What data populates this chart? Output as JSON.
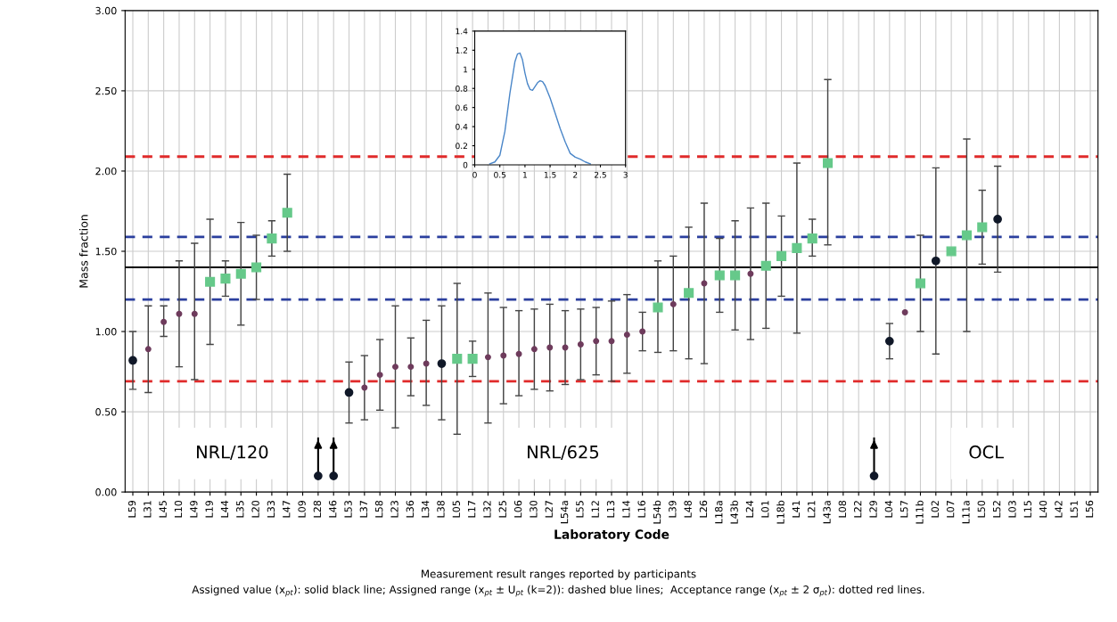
{
  "chart_data": [
    {
      "type": "scatter",
      "xlabel": "Laboratory Code",
      "ylabel": "Mass fraction",
      "categories": [
        "L59",
        "L31",
        "L45",
        "L10",
        "L49",
        "L19",
        "L44",
        "L35",
        "L20",
        "L33",
        "L47",
        "L09",
        "L28",
        "L46",
        "L53",
        "L37",
        "L58",
        "L23",
        "L36",
        "L34",
        "L38",
        "L05",
        "L17",
        "L32",
        "L25",
        "L06",
        "L30",
        "L27",
        "L54a",
        "L55",
        "L12",
        "L13",
        "L14",
        "L16",
        "L54b",
        "L39",
        "L48",
        "L26",
        "L18a",
        "L43b",
        "L24",
        "L01",
        "L18b",
        "L41",
        "L21",
        "L43a",
        "L08",
        "L22",
        "L29",
        "L04",
        "L57",
        "L11b",
        "L02",
        "L07",
        "L11a",
        "L50",
        "L52",
        "L03",
        "L15",
        "L40",
        "L42",
        "L51",
        "L56"
      ],
      "series": [
        {
          "color": "#6e3b5c",
          "marker": "circle",
          "values": [
            null,
            0.89,
            1.06,
            1.11,
            1.11,
            null,
            null,
            null,
            null,
            null,
            null,
            null,
            null,
            null,
            null,
            0.65,
            0.73,
            0.78,
            0.78,
            0.8,
            null,
            null,
            null,
            0.84,
            0.85,
            0.86,
            0.89,
            0.9,
            0.9,
            0.92,
            0.94,
            0.94,
            0.98,
            1.0,
            null,
            1.17,
            null,
            1.3,
            null,
            null,
            1.36,
            null,
            null,
            null,
            null,
            null,
            null,
            null,
            null,
            null,
            1.12,
            null,
            null,
            null,
            null,
            null,
            null,
            null,
            null,
            null,
            null,
            null,
            null
          ],
          "errors": [
            null,
            [
              0.62,
              1.16
            ],
            [
              0.97,
              1.16
            ],
            [
              0.78,
              1.44
            ],
            [
              0.7,
              1.55
            ],
            null,
            null,
            null,
            null,
            null,
            null,
            null,
            null,
            null,
            null,
            [
              0.45,
              0.85
            ],
            [
              0.51,
              0.95
            ],
            [
              0.4,
              1.16
            ],
            [
              0.6,
              0.96
            ],
            [
              0.54,
              1.07
            ],
            null,
            null,
            null,
            [
              0.43,
              1.24
            ],
            [
              0.55,
              1.15
            ],
            [
              0.6,
              1.13
            ],
            [
              0.64,
              1.14
            ],
            [
              0.63,
              1.17
            ],
            [
              0.67,
              1.13
            ],
            [
              0.7,
              1.14
            ],
            [
              0.73,
              1.15
            ],
            [
              0.69,
              1.19
            ],
            [
              0.74,
              1.23
            ],
            [
              0.88,
              1.12
            ],
            null,
            [
              0.88,
              1.47
            ],
            null,
            [
              0.8,
              1.8
            ],
            null,
            null,
            [
              0.95,
              1.77
            ],
            null,
            null,
            null,
            null,
            null,
            null,
            null,
            null,
            null,
            null,
            null,
            null,
            null,
            null,
            null,
            null,
            null,
            null,
            null,
            null,
            null,
            null
          ]
        },
        {
          "color": "#66c98a",
          "marker": "square",
          "values": [
            null,
            null,
            null,
            null,
            null,
            1.31,
            1.33,
            1.36,
            1.4,
            1.58,
            1.74,
            null,
            null,
            null,
            null,
            null,
            null,
            null,
            null,
            null,
            null,
            0.83,
            0.83,
            null,
            null,
            null,
            null,
            null,
            null,
            null,
            null,
            null,
            null,
            null,
            1.15,
            null,
            1.24,
            null,
            1.35,
            1.35,
            null,
            1.41,
            1.47,
            1.52,
            1.58,
            2.05,
            null,
            null,
            null,
            null,
            null,
            1.3,
            null,
            1.5,
            1.6,
            1.65,
            null,
            null,
            null,
            null,
            null,
            null,
            null
          ],
          "errors": [
            null,
            null,
            null,
            null,
            null,
            [
              0.92,
              1.7
            ],
            [
              1.22,
              1.44
            ],
            [
              1.04,
              1.68
            ],
            [
              1.2,
              1.6
            ],
            [
              1.47,
              1.69
            ],
            [
              1.5,
              1.98
            ],
            null,
            null,
            null,
            null,
            null,
            null,
            null,
            null,
            null,
            null,
            [
              0.36,
              1.3
            ],
            [
              0.72,
              0.94
            ],
            null,
            null,
            null,
            null,
            null,
            null,
            null,
            null,
            null,
            null,
            null,
            [
              0.87,
              1.44
            ],
            null,
            [
              0.83,
              1.65
            ],
            null,
            [
              1.12,
              1.58
            ],
            [
              1.01,
              1.69
            ],
            null,
            [
              1.02,
              1.8
            ],
            [
              1.22,
              1.72
            ],
            [
              0.99,
              2.05
            ],
            [
              1.47,
              1.7
            ],
            [
              1.54,
              2.57
            ],
            null,
            null,
            null,
            null,
            null,
            [
              1.0,
              1.6
            ],
            null,
            null,
            [
              1.0,
              2.2
            ],
            [
              1.42,
              1.88
            ],
            null,
            null,
            null,
            null,
            null,
            null,
            null
          ]
        },
        {
          "color": "#101828",
          "marker": "circle",
          "values": [
            0.82,
            null,
            null,
            null,
            null,
            null,
            null,
            null,
            null,
            null,
            null,
            null,
            0.1,
            0.1,
            0.62,
            null,
            null,
            null,
            null,
            null,
            0.8,
            null,
            null,
            null,
            null,
            null,
            null,
            null,
            null,
            null,
            null,
            null,
            null,
            null,
            null,
            null,
            null,
            null,
            null,
            null,
            null,
            null,
            null,
            null,
            null,
            null,
            null,
            null,
            0.1,
            0.94,
            null,
            null,
            1.44,
            null,
            null,
            null,
            1.7,
            null,
            null,
            null,
            null,
            null,
            null
          ],
          "errors": [
            [
              0.64,
              1.0
            ],
            null,
            null,
            null,
            null,
            null,
            null,
            null,
            null,
            null,
            null,
            null,
            [
              0.1,
              0.34
            ],
            [
              0.1,
              0.34
            ],
            [
              0.43,
              0.81
            ],
            null,
            null,
            null,
            null,
            null,
            [
              0.45,
              1.16
            ],
            null,
            null,
            null,
            null,
            null,
            null,
            null,
            null,
            null,
            null,
            null,
            null,
            null,
            null,
            null,
            null,
            null,
            null,
            null,
            null,
            null,
            null,
            null,
            null,
            null,
            null,
            null,
            [
              0.1,
              0.34
            ],
            [
              0.83,
              1.05
            ],
            null,
            null,
            [
              0.86,
              2.02
            ],
            null,
            null,
            null,
            [
              1.37,
              2.03
            ],
            null,
            null,
            null,
            null,
            null,
            null
          ]
        }
      ],
      "ylim": [
        0,
        3
      ],
      "yticks": [
        {
          "value": 0,
          "label": "0.00"
        },
        {
          "value": 0.5,
          "label": "0.50"
        },
        {
          "value": 1,
          "label": "1.00"
        },
        {
          "value": 1.5,
          "label": "1.50"
        },
        {
          "value": 2,
          "label": "2.00"
        },
        {
          "value": 2.5,
          "label": "2.50"
        },
        {
          "value": 3,
          "label": "3.00"
        }
      ],
      "grid": true,
      "ref_lines": [
        {
          "axis": "y",
          "value": 1.4,
          "color": "#000000",
          "line_style": "solid"
        },
        {
          "axis": "y",
          "value": 1.2,
          "color": "#2b3f9e",
          "line_style": "dashed"
        },
        {
          "axis": "y",
          "value": 1.59,
          "color": "#2b3f9e",
          "line_style": "dashed"
        },
        {
          "axis": "y",
          "value": 0.69,
          "color": "#e02b2b",
          "line_style": "dashed"
        },
        {
          "axis": "y",
          "value": 2.09,
          "color": "#e02b2b",
          "line_style": "dashed"
        }
      ],
      "annotations": [
        "NRL/120",
        "NRL/625",
        "OCL",
        "Measurement result ranges reported by participants",
        "Assigned value (x$_{pt}$): solid black line; Assigned range (x$_{pt}$ ± U$_{pt}$ (k=2)): dashed blue lines;  Acceptance range (x$_{pt}$ ± 2 σ$_{pt}$): dotted red lines."
      ]
    },
    {
      "type": "line",
      "x": [
        0.3,
        0.4,
        0.5,
        0.6,
        0.7,
        0.8,
        0.85,
        0.9,
        0.95,
        1.0,
        1.05,
        1.1,
        1.15,
        1.2,
        1.25,
        1.3,
        1.35,
        1.4,
        1.5,
        1.6,
        1.7,
        1.8,
        1.9,
        2.0,
        2.1,
        2.2,
        2.3
      ],
      "series": [
        {
          "color": "#4a86c8",
          "values": [
            0.01,
            0.03,
            0.1,
            0.35,
            0.75,
            1.08,
            1.16,
            1.17,
            1.1,
            0.96,
            0.85,
            0.79,
            0.78,
            0.82,
            0.86,
            0.88,
            0.87,
            0.83,
            0.7,
            0.54,
            0.38,
            0.24,
            0.12,
            0.08,
            0.06,
            0.03,
            0.01
          ]
        }
      ],
      "xlim": [
        0,
        3
      ],
      "xticks": [
        0,
        0.5,
        1,
        1.5,
        2,
        2.5,
        3
      ],
      "ylim": [
        0,
        1.4
      ],
      "yticks": [
        0,
        0.2,
        0.4,
        0.6,
        0.8,
        1,
        1.2,
        1.4
      ],
      "grid": false
    }
  ]
}
